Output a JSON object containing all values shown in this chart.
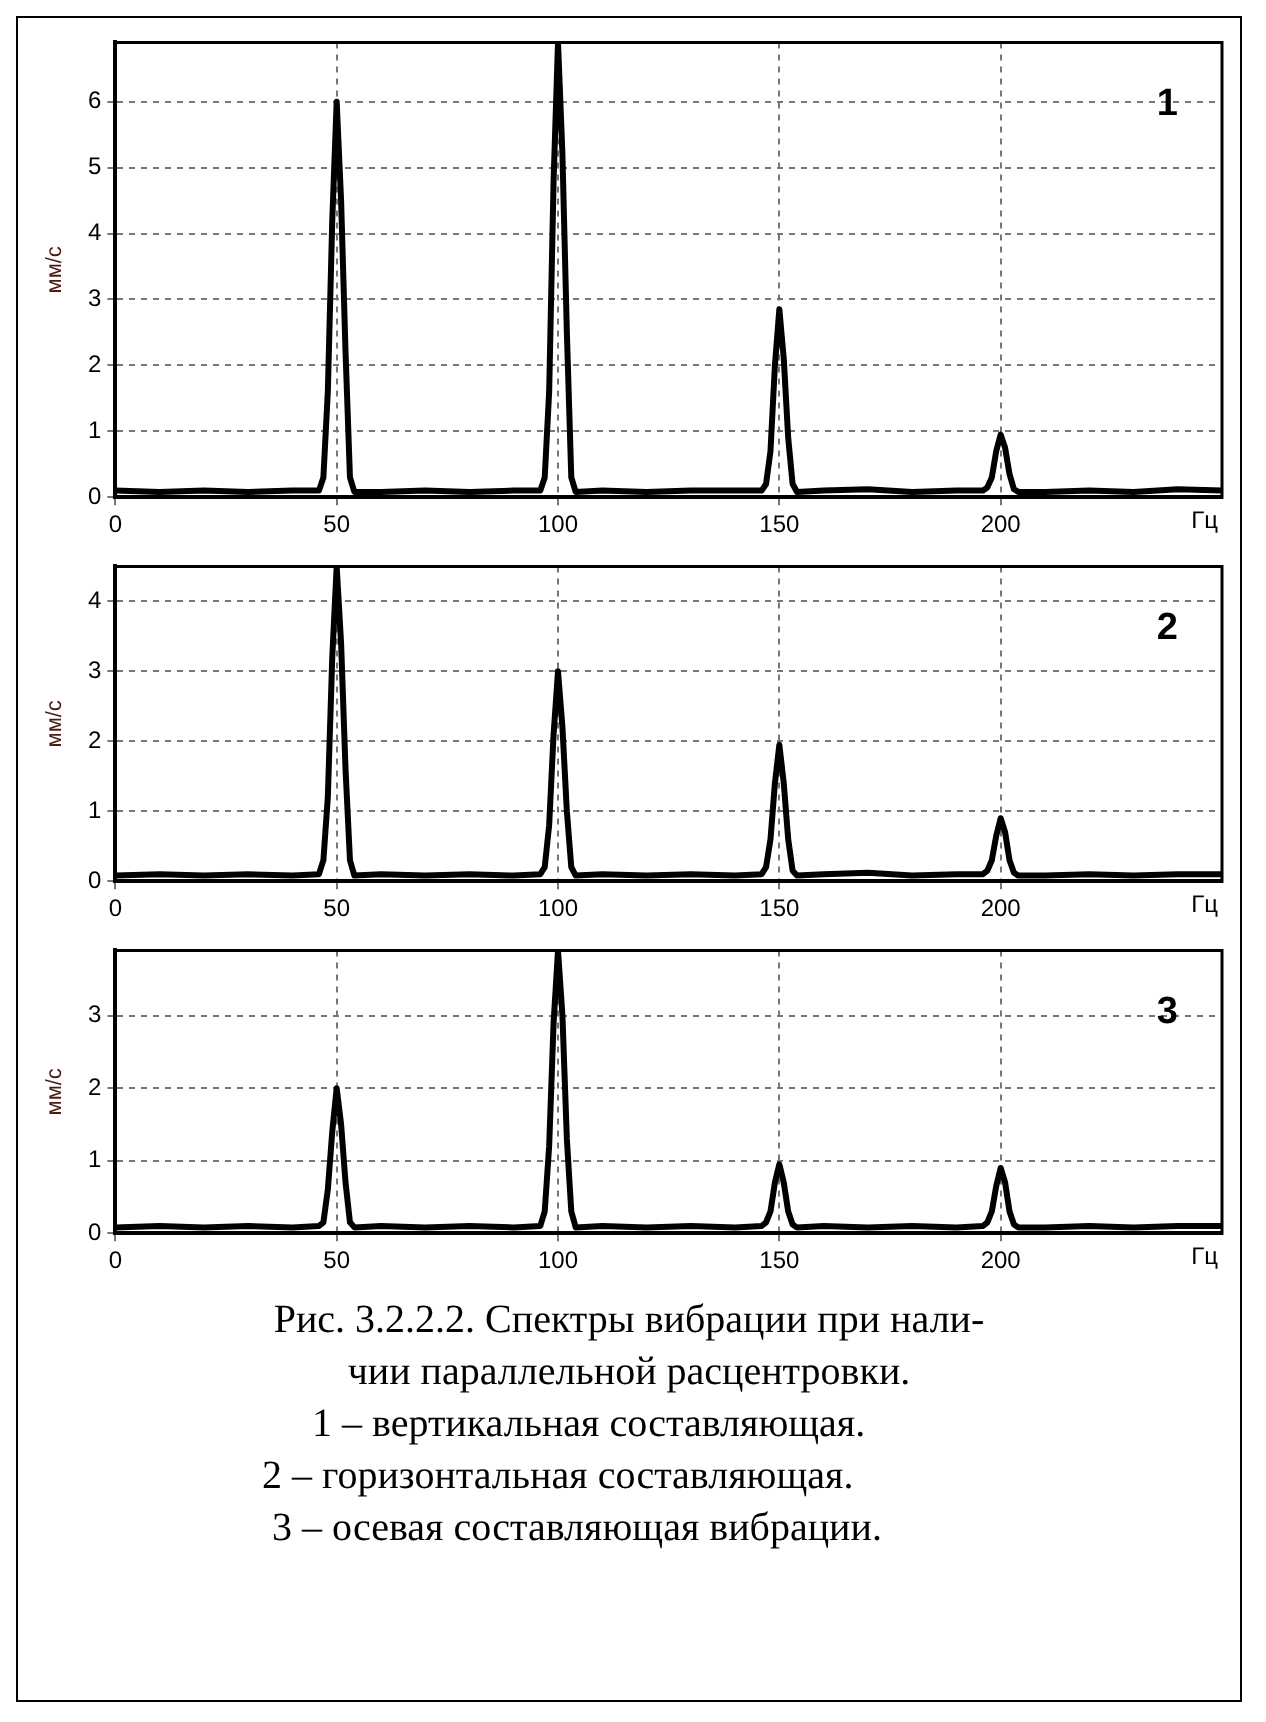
{
  "chart_data": [
    {
      "type": "line",
      "title": "1",
      "xlabel": "Гц",
      "ylabel": "мм/с",
      "grid": true,
      "xlim": [
        0,
        250
      ],
      "xticks": [
        0,
        50,
        100,
        150,
        200
      ],
      "ylim": [
        0,
        6.9
      ],
      "yticks": [
        0,
        1,
        2,
        3,
        4,
        5,
        6
      ],
      "x": [
        0,
        10,
        20,
        30,
        40,
        46,
        47,
        48,
        49,
        50,
        51,
        52,
        53,
        54,
        60,
        70,
        80,
        90,
        96,
        97,
        98,
        99,
        100,
        101,
        102,
        103,
        104,
        110,
        120,
        130,
        140,
        146,
        147,
        148,
        149,
        150,
        151,
        152,
        153,
        154,
        160,
        170,
        180,
        190,
        196,
        197,
        198,
        199,
        200,
        201,
        202,
        203,
        204,
        210,
        220,
        230,
        240,
        250
      ],
      "series": [
        {
          "color": "#000000",
          "values": [
            0.1,
            0.08,
            0.1,
            0.08,
            0.1,
            0.1,
            0.3,
            1.6,
            4.2,
            6.0,
            4.5,
            2.2,
            0.3,
            0.08,
            0.08,
            0.1,
            0.08,
            0.1,
            0.1,
            0.3,
            1.6,
            4.8,
            6.9,
            5.2,
            2.5,
            0.3,
            0.08,
            0.1,
            0.08,
            0.1,
            0.1,
            0.1,
            0.2,
            0.7,
            2.0,
            2.85,
            2.1,
            0.9,
            0.2,
            0.08,
            0.1,
            0.12,
            0.08,
            0.1,
            0.1,
            0.15,
            0.3,
            0.7,
            0.95,
            0.75,
            0.35,
            0.12,
            0.08,
            0.08,
            0.1,
            0.08,
            0.12,
            0.1
          ]
        }
      ]
    },
    {
      "type": "line",
      "title": "2",
      "xlabel": "Гц",
      "ylabel": "мм/с",
      "grid": true,
      "xlim": [
        0,
        250
      ],
      "xticks": [
        0,
        50,
        100,
        150,
        200
      ],
      "ylim": [
        0,
        4.5
      ],
      "yticks": [
        0,
        1,
        2,
        3,
        4
      ],
      "x": [
        0,
        10,
        20,
        30,
        40,
        46,
        47,
        48,
        49,
        50,
        51,
        52,
        53,
        54,
        60,
        70,
        80,
        90,
        96,
        97,
        98,
        99,
        100,
        101,
        102,
        103,
        104,
        110,
        120,
        130,
        140,
        146,
        147,
        148,
        149,
        150,
        151,
        152,
        153,
        154,
        160,
        170,
        180,
        190,
        196,
        197,
        198,
        199,
        200,
        201,
        202,
        203,
        204,
        210,
        220,
        230,
        240,
        250
      ],
      "series": [
        {
          "color": "#000000",
          "values": [
            0.08,
            0.1,
            0.08,
            0.1,
            0.08,
            0.1,
            0.3,
            1.2,
            3.2,
            4.5,
            3.4,
            1.6,
            0.3,
            0.08,
            0.1,
            0.08,
            0.1,
            0.08,
            0.1,
            0.2,
            0.8,
            2.1,
            3.0,
            2.2,
            1.0,
            0.2,
            0.08,
            0.1,
            0.08,
            0.1,
            0.08,
            0.1,
            0.2,
            0.6,
            1.4,
            1.95,
            1.4,
            0.6,
            0.15,
            0.08,
            0.1,
            0.12,
            0.08,
            0.1,
            0.1,
            0.15,
            0.3,
            0.65,
            0.9,
            0.7,
            0.3,
            0.12,
            0.08,
            0.08,
            0.1,
            0.08,
            0.1,
            0.1
          ]
        }
      ]
    },
    {
      "type": "line",
      "title": "3",
      "xlabel": "Гц",
      "ylabel": "мм/с",
      "grid": true,
      "xlim": [
        0,
        250
      ],
      "xticks": [
        0,
        50,
        100,
        150,
        200
      ],
      "ylim": [
        0,
        3.9
      ],
      "yticks": [
        0,
        1,
        2,
        3
      ],
      "x": [
        0,
        10,
        20,
        30,
        40,
        46,
        47,
        48,
        49,
        50,
        51,
        52,
        53,
        54,
        60,
        70,
        80,
        90,
        96,
        97,
        98,
        99,
        100,
        101,
        102,
        103,
        104,
        110,
        120,
        130,
        140,
        146,
        147,
        148,
        149,
        150,
        151,
        152,
        153,
        154,
        160,
        170,
        180,
        190,
        196,
        197,
        198,
        199,
        200,
        201,
        202,
        203,
        204,
        210,
        220,
        230,
        240,
        250
      ],
      "series": [
        {
          "color": "#000000",
          "values": [
            0.08,
            0.1,
            0.08,
            0.1,
            0.08,
            0.1,
            0.15,
            0.6,
            1.4,
            2.0,
            1.5,
            0.7,
            0.15,
            0.08,
            0.1,
            0.08,
            0.1,
            0.08,
            0.1,
            0.3,
            1.2,
            2.9,
            3.9,
            3.0,
            1.3,
            0.3,
            0.08,
            0.1,
            0.08,
            0.1,
            0.08,
            0.1,
            0.15,
            0.3,
            0.7,
            0.95,
            0.7,
            0.3,
            0.12,
            0.08,
            0.1,
            0.08,
            0.1,
            0.08,
            0.1,
            0.15,
            0.3,
            0.65,
            0.9,
            0.7,
            0.3,
            0.12,
            0.08,
            0.08,
            0.1,
            0.08,
            0.1,
            0.1
          ]
        }
      ],
      "annotations": [
        "Рис. 3.2.2.2. Спектры вибрации при нали-",
        "чии параллельной расцентровки.",
        "1 – вертикальная составляющая.",
        "2 – горизонтальная составляющая.",
        "3 – осевая составляющая вибрации."
      ]
    }
  ]
}
